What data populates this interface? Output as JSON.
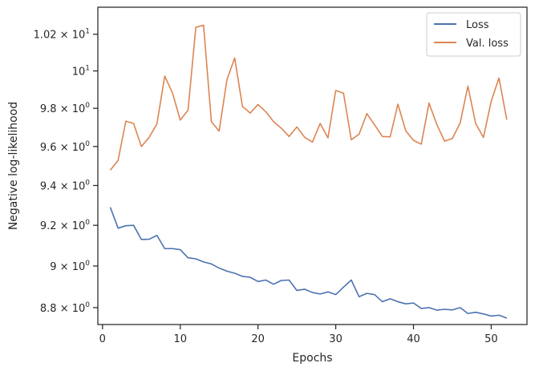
{
  "chart_data": {
    "type": "line",
    "xlabel": "Epochs",
    "ylabel": "Negative log-likelihood",
    "yscale": "log",
    "xlim": [
      -0.6,
      54.6
    ],
    "ylim": [
      8.72,
      10.35
    ],
    "grid": false,
    "legend_position": "top-right",
    "x_ticks": [
      {
        "value": 0,
        "label": "0"
      },
      {
        "value": 10,
        "label": "10"
      },
      {
        "value": 20,
        "label": "20"
      },
      {
        "value": 30,
        "label": "30"
      },
      {
        "value": 40,
        "label": "40"
      },
      {
        "value": 50,
        "label": "50"
      }
    ],
    "y_ticks": [
      {
        "value": 8.8,
        "mantissa": "8.8",
        "label": "8.8 × 10⁰"
      },
      {
        "value": 9.0,
        "mantissa": "9",
        "label": "9 × 10⁰"
      },
      {
        "value": 9.2,
        "mantissa": "9.2",
        "label": "9.2 × 10⁰"
      },
      {
        "value": 9.4,
        "mantissa": "9.4",
        "label": "9.4 × 10⁰"
      },
      {
        "value": 9.6,
        "mantissa": "9.6",
        "label": "9.6 × 10⁰"
      },
      {
        "value": 9.8,
        "mantissa": "9.8",
        "label": "9.8 × 10⁰"
      },
      {
        "value": 10.0,
        "mantissa": "10",
        "label": "10¹",
        "plain": true
      },
      {
        "value": 10.2,
        "mantissa": "1.02",
        "label": "1.02 × 10¹",
        "exp": "1"
      }
    ],
    "x": [
      1,
      2,
      3,
      4,
      5,
      6,
      7,
      8,
      9,
      10,
      11,
      12,
      13,
      14,
      15,
      16,
      17,
      18,
      19,
      20,
      21,
      22,
      23,
      24,
      25,
      26,
      27,
      28,
      29,
      30,
      31,
      32,
      33,
      34,
      35,
      36,
      37,
      38,
      39,
      40,
      41,
      42,
      43,
      44,
      45,
      46,
      47,
      48,
      49,
      50,
      51,
      52
    ],
    "series": [
      {
        "name": "Loss",
        "color": "#4c72b0",
        "values": [
          9.29,
          9.186,
          9.198,
          9.2,
          9.13,
          9.131,
          9.15,
          9.085,
          9.085,
          9.08,
          9.04,
          9.035,
          9.02,
          9.01,
          8.99,
          8.975,
          8.965,
          8.95,
          8.945,
          8.925,
          8.932,
          8.912,
          8.93,
          8.932,
          8.882,
          8.888,
          8.872,
          8.865,
          8.875,
          8.862,
          8.898,
          8.932,
          8.852,
          8.868,
          8.862,
          8.828,
          8.842,
          8.828,
          8.818,
          8.822,
          8.796,
          8.8,
          8.788,
          8.792,
          8.789,
          8.8,
          8.772,
          8.778,
          8.77,
          8.76,
          8.764,
          8.75
        ]
      },
      {
        "name": "Val. loss",
        "color": "#dd8452",
        "values": [
          9.478,
          9.528,
          9.732,
          9.72,
          9.6,
          9.648,
          9.718,
          9.972,
          9.882,
          9.738,
          9.79,
          10.238,
          10.25,
          9.73,
          9.68,
          9.952,
          10.07,
          9.81,
          9.775,
          9.82,
          9.782,
          9.73,
          9.695,
          9.652,
          9.702,
          9.648,
          9.623,
          9.72,
          9.645,
          9.895,
          9.88,
          9.635,
          9.664,
          9.772,
          9.713,
          9.652,
          9.65,
          9.822,
          9.682,
          9.632,
          9.612,
          9.828,
          9.715,
          9.628,
          9.642,
          9.722,
          9.918,
          9.72,
          9.647,
          9.838,
          9.962,
          9.74
        ]
      }
    ]
  }
}
